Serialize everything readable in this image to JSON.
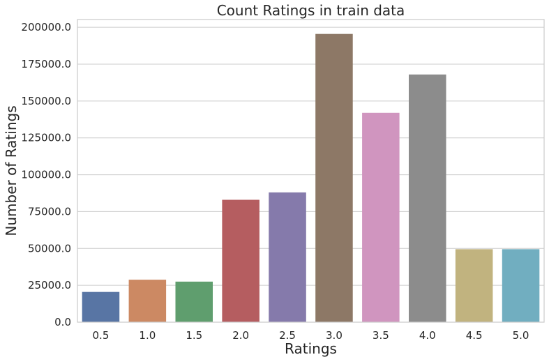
{
  "chart_data": {
    "type": "bar",
    "title": "Count Ratings in train data",
    "xlabel": "Ratings",
    "ylabel": "Number of Ratings",
    "categories": [
      "0.5",
      "1.0",
      "1.5",
      "2.0",
      "2.5",
      "3.0",
      "3.5",
      "4.0",
      "4.5",
      "5.0"
    ],
    "values": [
      20500,
      28800,
      27500,
      83000,
      88000,
      195500,
      142000,
      168000,
      49500,
      49500
    ],
    "colors": [
      "#5875a4",
      "#cc8963",
      "#5f9e6e",
      "#b55d60",
      "#857aab",
      "#8d7866",
      "#d095bf",
      "#8c8c8c",
      "#c1b37f",
      "#71aec0"
    ],
    "yticks": [
      0,
      25000,
      50000,
      75000,
      100000,
      125000,
      150000,
      175000,
      200000
    ],
    "ytick_labels": [
      "0.0",
      "25000.0",
      "50000.0",
      "75000.0",
      "100000.0",
      "125000.0",
      "150000.0",
      "175000.0",
      "200000.0"
    ],
    "ylim": [
      0,
      205275
    ],
    "grid": "horizontal"
  }
}
